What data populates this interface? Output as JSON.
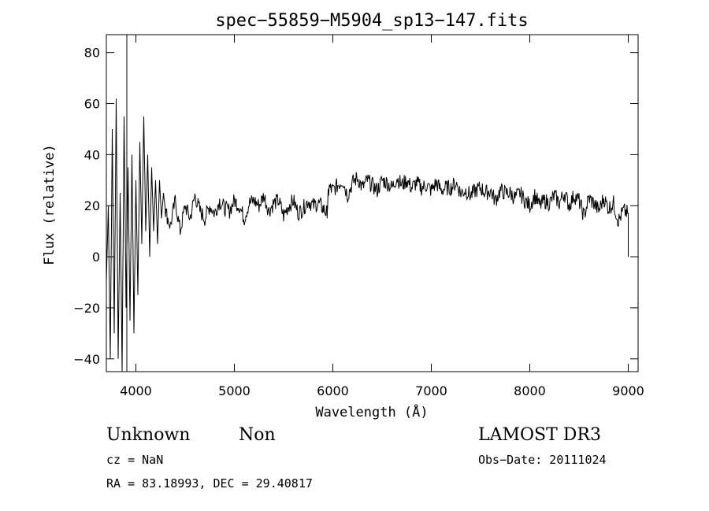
{
  "chart_data": {
    "type": "line",
    "title": "spec−55859−M5904_sp13−147.fits",
    "xlabel": "Wavelength (Å)",
    "ylabel": "Flux (relative)",
    "xlim": [
      3700,
      9100
    ],
    "ylim": [
      -45,
      87
    ],
    "xticks": [
      4000,
      5000,
      6000,
      7000,
      8000,
      9000
    ],
    "xtick_labels": [
      "4000",
      "5000",
      "6000",
      "7000",
      "8000",
      "9000"
    ],
    "yticks": [
      -40,
      -20,
      0,
      20,
      40,
      60,
      80
    ],
    "ytick_labels": [
      "−40",
      "−20",
      "0",
      "20",
      "40",
      "60",
      "80"
    ],
    "grid": false,
    "series": [
      {
        "x": [
          3700,
          3720,
          3740,
          3760,
          3780,
          3800,
          3820,
          3840,
          3860,
          3880,
          3900,
          3920,
          3940,
          3960,
          3980,
          4000,
          4020,
          4040,
          4060,
          4080,
          4100,
          4120,
          4140,
          4160,
          4180,
          4200,
          4220,
          4240,
          4260,
          4280,
          4300,
          4350,
          4400,
          4450,
          4500,
          4550,
          4600,
          4650,
          4700,
          4750,
          4800,
          4850,
          4900,
          4950,
          5000,
          5050,
          5100,
          5150,
          5200,
          5250,
          5300,
          5350,
          5400,
          5450,
          5500,
          5550,
          5600,
          5650,
          5700,
          5750,
          5800,
          5850,
          5900,
          5940,
          5960,
          6000,
          6050,
          6100,
          6150,
          6200,
          6250,
          6300,
          6350,
          6400,
          6450,
          6500,
          6550,
          6600,
          6650,
          6700,
          6750,
          6800,
          6850,
          6900,
          6950,
          7000,
          7050,
          7100,
          7150,
          7200,
          7250,
          7300,
          7350,
          7400,
          7450,
          7500,
          7550,
          7600,
          7650,
          7700,
          7750,
          7800,
          7850,
          7900,
          7950,
          8000,
          8050,
          8100,
          8150,
          8200,
          8250,
          8300,
          8350,
          8400,
          8450,
          8500,
          8550,
          8600,
          8650,
          8700,
          8750,
          8800,
          8850,
          8900,
          8950,
          9000
        ],
        "y": [
          -10,
          20,
          -40,
          50,
          -30,
          62,
          -40,
          25,
          -45,
          55,
          -20,
          35,
          -25,
          40,
          -30,
          30,
          -15,
          45,
          5,
          55,
          10,
          40,
          0,
          35,
          10,
          30,
          5,
          30,
          15,
          25,
          18,
          12,
          22,
          10,
          20,
          15,
          24,
          18,
          15,
          20,
          17,
          22,
          19,
          18,
          22,
          20,
          15,
          21,
          22,
          20,
          24,
          18,
          21,
          22,
          16,
          20,
          22,
          17,
          19,
          22,
          20,
          21,
          19,
          17,
          27,
          26,
          28,
          30,
          24,
          29,
          31,
          27,
          30,
          28,
          26,
          30,
          29,
          27,
          31,
          28,
          30,
          27,
          29,
          27,
          28,
          26,
          29,
          26,
          27,
          27,
          29,
          25,
          26,
          24,
          26,
          27,
          25,
          26,
          22,
          26,
          25,
          25,
          23,
          25,
          22,
          20,
          24,
          20,
          22,
          21,
          24,
          21,
          25,
          20,
          24,
          22,
          16,
          23,
          21,
          18,
          23,
          19,
          21,
          14,
          18,
          17
        ]
      }
    ]
  },
  "annotations": {
    "object_class": "Unknown",
    "object_subclass": "Non",
    "survey": "LAMOST DR3",
    "cz": "cz = NaN",
    "obs_date": "Obs−Date: 20111024",
    "coords": "RA =  83.18993, DEC =  29.40817"
  }
}
